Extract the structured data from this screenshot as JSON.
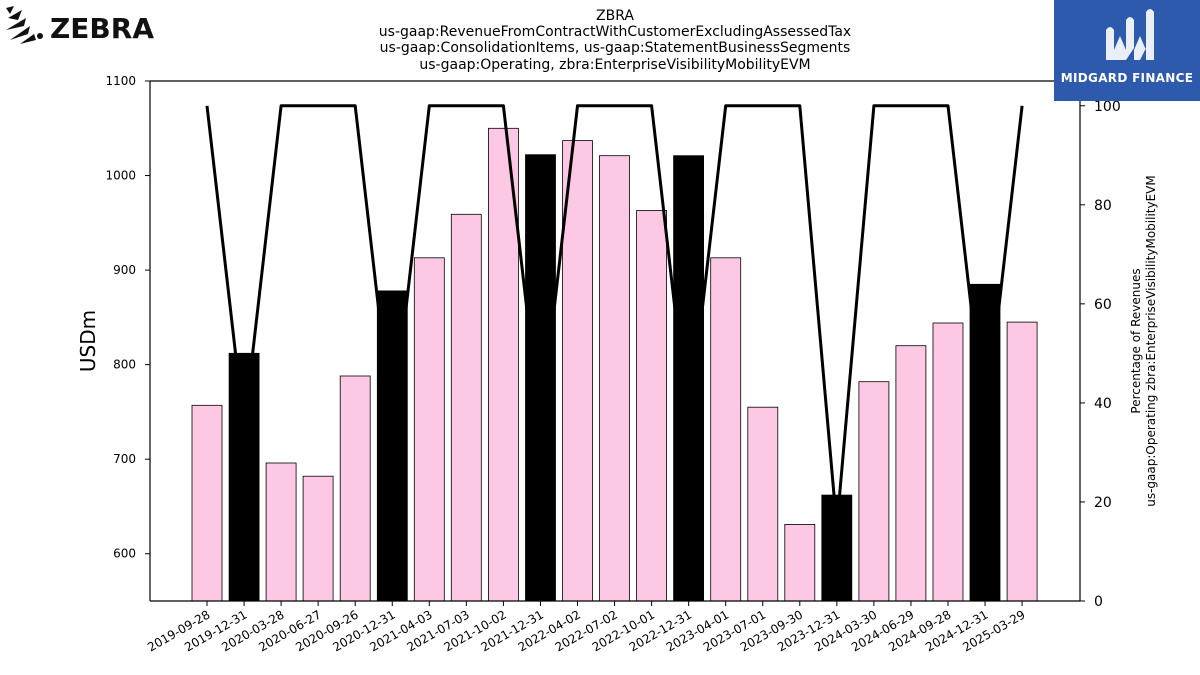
{
  "brand": {
    "logo_text": "ZEBRA",
    "logo_icon": "zebra-stripes-icon"
  },
  "badge": {
    "label": "MIDGARD FINANCE",
    "icon": "midgard-m-icon",
    "color": "#2d5aad"
  },
  "chart_data": {
    "type": "bar",
    "title_lines": [
      "ZBRA",
      "us-gaap:RevenueFromContractWithCustomerExcludingAssessedTax",
      "us-gaap:ConsolidationItems, us-gaap:StatementBusinessSegments",
      "us-gaap:Operating, zbra:EnterpriseVisibilityMobilityEVM"
    ],
    "ylabel": "USDm",
    "y2label_lines": [
      "Percentage of Revenues",
      "us-gaap:Operating zbra:EnterpriseVisibilityMobilityEVM"
    ],
    "ylim": [
      550,
      1100
    ],
    "y2lim": [
      0,
      105
    ],
    "yticks": [
      600,
      700,
      800,
      900,
      1000,
      1100
    ],
    "y2ticks": [
      0,
      20,
      40,
      60,
      80,
      100
    ],
    "categories": [
      "2019-09-28",
      "2019-12-31",
      "2020-03-28",
      "2020-06-27",
      "2020-09-26",
      "2020-12-31",
      "2021-04-03",
      "2021-07-03",
      "2021-10-02",
      "2021-12-31",
      "2022-04-02",
      "2022-07-02",
      "2022-10-01",
      "2022-12-31",
      "2023-04-01",
      "2023-07-01",
      "2023-09-30",
      "2023-12-31",
      "2024-03-30",
      "2024-06-29",
      "2024-09-28",
      "2024-12-31",
      "2025-03-29"
    ],
    "values": [
      757,
      812,
      696,
      682,
      788,
      878,
      913,
      959,
      1050,
      1022,
      1037,
      1021,
      963,
      1021,
      913,
      755,
      631,
      662,
      782,
      820,
      844,
      885,
      845
    ],
    "bar_colors": [
      "#fcc8e4",
      "#000000",
      "#fcc8e4",
      "#fcc8e4",
      "#fcc8e4",
      "#000000",
      "#fcc8e4",
      "#fcc8e4",
      "#fcc8e4",
      "#000000",
      "#fcc8e4",
      "#fcc8e4",
      "#fcc8e4",
      "#000000",
      "#fcc8e4",
      "#fcc8e4",
      "#fcc8e4",
      "#000000",
      "#fcc8e4",
      "#fcc8e4",
      "#fcc8e4",
      "#000000",
      "#fcc8e4"
    ],
    "line_series": {
      "values": [
        100,
        35,
        100,
        100,
        100,
        35,
        100,
        100,
        100,
        35,
        100,
        100,
        100,
        35,
        100,
        100,
        100,
        15,
        100,
        100,
        100,
        35,
        100
      ],
      "color": "#000000"
    },
    "grid": false
  }
}
